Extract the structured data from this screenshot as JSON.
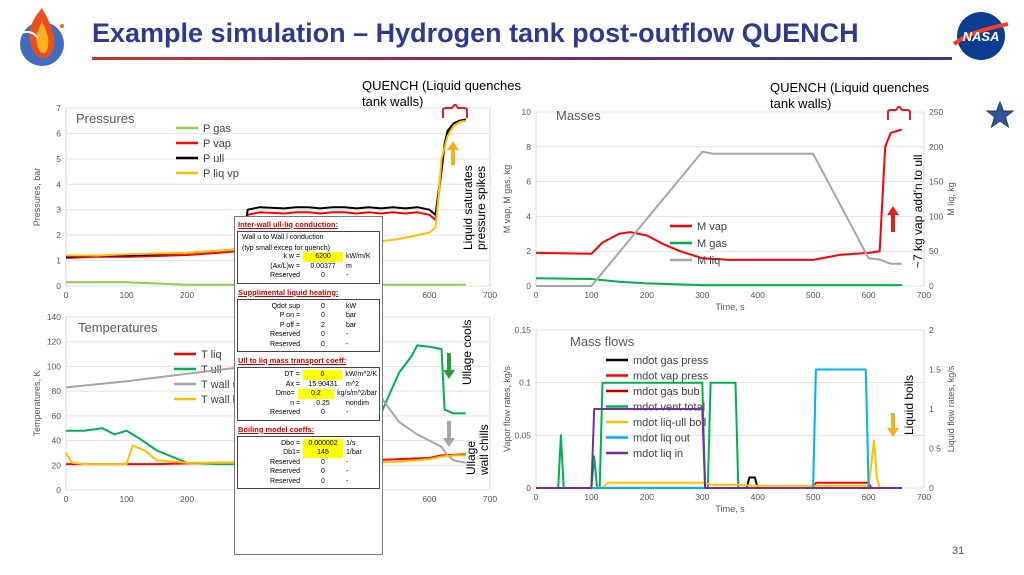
{
  "slide": {
    "title": "Example simulation – Hydrogen tank post-outflow QUENCH",
    "page_number": "31",
    "nasa_logo_text": "NASA"
  },
  "annotations": {
    "quench_left": [
      "QUENCH (Liquid quenches",
      "tank walls)"
    ],
    "quench_right": [
      "QUENCH (Liquid quenches",
      "tank walls)"
    ],
    "liquid_saturates": [
      "Liquid saturates",
      "pressure spikes"
    ],
    "vap_add": "~7 kg vap add'n to ull",
    "ullage_cools": "Ullage cools",
    "ullage_chills": [
      "Ullage",
      "wall chills"
    ],
    "liquid_boils": "Liquid boils"
  },
  "colors": {
    "gas": "#8fd14f",
    "vap": "#ff0000",
    "ull": "#000000",
    "liqvp": "#ffc000",
    "green": "#00b050",
    "gray": "#a6a6a6",
    "blue": "#00b0f0",
    "purple": "#7030a0",
    "darkred": "#c00000",
    "arrow_gold": "#f0b020",
    "arrow_red": "#e02020",
    "arrow_green": "#2a9d3a"
  },
  "chart_data": [
    {
      "id": "pressures",
      "type": "line",
      "title": "Pressures",
      "ylabel": "Pressures, bar",
      "xlim": [
        0,
        700
      ],
      "ylim": [
        0,
        7
      ],
      "xticks": [
        0,
        100,
        200,
        300,
        400,
        500,
        600,
        700
      ],
      "yticks": [
        0,
        1,
        2,
        3,
        4,
        5,
        6,
        7
      ],
      "series": [
        {
          "name": "P gas",
          "color": "#8fd14f",
          "x": [
            0,
            100,
            150,
            200,
            300,
            400,
            500,
            600,
            610,
            660
          ],
          "y": [
            0.15,
            0.15,
            0.1,
            0.05,
            0.05,
            0.05,
            0.05,
            0.05,
            0.05,
            0.05
          ]
        },
        {
          "name": "P vap",
          "color": "#ff0000",
          "x": [
            0,
            50,
            100,
            150,
            200,
            250,
            290,
            300,
            320,
            360,
            380,
            400,
            420,
            440,
            460,
            480,
            500,
            520,
            540,
            560,
            580,
            600,
            610,
            620,
            625,
            630,
            640,
            650,
            660
          ],
          "y": [
            1.1,
            1.15,
            1.15,
            1.18,
            1.22,
            1.3,
            1.38,
            2.8,
            2.9,
            2.85,
            2.9,
            2.9,
            2.85,
            2.9,
            2.9,
            2.85,
            2.9,
            2.85,
            2.9,
            2.85,
            2.9,
            2.8,
            2.6,
            4.5,
            5.5,
            6.0,
            6.3,
            6.45,
            6.5
          ]
        },
        {
          "name": "P ull",
          "color": "#000000",
          "x": [
            0,
            50,
            100,
            150,
            200,
            250,
            290,
            300,
            320,
            360,
            380,
            400,
            420,
            440,
            460,
            480,
            500,
            520,
            540,
            560,
            580,
            600,
            610,
            620,
            625,
            630,
            640,
            650,
            660
          ],
          "y": [
            1.15,
            1.2,
            1.2,
            1.25,
            1.3,
            1.38,
            1.45,
            3.0,
            3.1,
            3.05,
            3.1,
            3.1,
            3.05,
            3.1,
            3.1,
            3.05,
            3.1,
            3.05,
            3.1,
            3.05,
            3.1,
            3.0,
            2.8,
            4.6,
            5.6,
            6.1,
            6.4,
            6.5,
            6.55
          ]
        },
        {
          "name": "P liq vp",
          "color": "#ffc000",
          "x": [
            0,
            50,
            100,
            150,
            200,
            250,
            290,
            300,
            350,
            400,
            450,
            500,
            550,
            600,
            610,
            615,
            620,
            630,
            640,
            650,
            660
          ],
          "y": [
            1.2,
            1.2,
            1.25,
            1.28,
            1.3,
            1.38,
            1.45,
            1.5,
            1.5,
            1.5,
            1.6,
            1.7,
            1.85,
            2.1,
            2.3,
            3.5,
            5.0,
            5.9,
            6.3,
            6.45,
            6.5
          ]
        }
      ]
    },
    {
      "id": "masses",
      "type": "line",
      "title": "Masses",
      "xlabel": "Time, s",
      "ylabel": "M vap, M gas, kg",
      "y2label": "M liq, kg",
      "xlim": [
        0,
        700
      ],
      "ylim": [
        0,
        10
      ],
      "y2lim": [
        0,
        250
      ],
      "xticks": [
        0,
        100,
        200,
        300,
        400,
        500,
        600,
        700
      ],
      "yticks": [
        0,
        2,
        4,
        6,
        8,
        10
      ],
      "y2ticks": [
        0,
        50,
        100,
        150,
        200,
        250
      ],
      "series": [
        {
          "name": "M vap",
          "color": "#ff0000",
          "axis": "left",
          "x": [
            0,
            100,
            120,
            150,
            170,
            200,
            230,
            260,
            300,
            350,
            400,
            500,
            550,
            600,
            620,
            625,
            630,
            640,
            660
          ],
          "y": [
            1.9,
            1.85,
            2.5,
            3.0,
            3.1,
            2.9,
            2.4,
            2.0,
            1.6,
            1.5,
            1.5,
            1.5,
            1.8,
            1.9,
            2.0,
            5.0,
            8.0,
            8.8,
            9.0
          ]
        },
        {
          "name": "M gas",
          "color": "#00b050",
          "axis": "left",
          "x": [
            0,
            100,
            150,
            200,
            250,
            300,
            400,
            500,
            600,
            660
          ],
          "y": [
            0.45,
            0.4,
            0.25,
            0.15,
            0.1,
            0.05,
            0.05,
            0.05,
            0.05,
            0.05
          ]
        },
        {
          "name": "M liq",
          "color": "#a6a6a6",
          "axis": "right",
          "x": [
            0,
            100,
            300,
            320,
            500,
            520,
            600,
            620,
            640,
            660
          ],
          "y": [
            0,
            0,
            193,
            190,
            190,
            160,
            40,
            38,
            32,
            32
          ]
        }
      ]
    },
    {
      "id": "temperatures",
      "type": "line",
      "title": "Temperatures",
      "ylabel": "Temperatures, K",
      "xlim": [
        0,
        700
      ],
      "ylim": [
        0,
        140
      ],
      "xticks": [
        0,
        100,
        200,
        300,
        400,
        500,
        600,
        700
      ],
      "yticks": [
        0,
        20,
        40,
        60,
        80,
        100,
        120,
        140
      ],
      "series": [
        {
          "name": "T liq",
          "color": "#ff0000",
          "x": [
            0,
            100,
            150,
            200,
            250,
            300,
            350,
            400,
            450,
            500,
            550,
            600,
            620,
            660
          ],
          "y": [
            21,
            21,
            21,
            21.5,
            22,
            22,
            22.5,
            23,
            23.5,
            24,
            25,
            26,
            28,
            29
          ]
        },
        {
          "name": "T ull",
          "color": "#00b050",
          "x": [
            0,
            30,
            60,
            80,
            100,
            120,
            150,
            200,
            250,
            300,
            350,
            400,
            450,
            500,
            550,
            570,
            580,
            600,
            620,
            625,
            640,
            660
          ],
          "y": [
            48,
            48,
            50,
            45,
            48,
            42,
            32,
            22,
            21,
            21,
            22,
            23,
            25,
            40,
            95,
            108,
            117,
            116,
            114,
            65,
            62,
            62
          ]
        },
        {
          "name": "T wall u",
          "color": "#a6a6a6",
          "x": [
            0,
            100,
            200,
            300,
            400,
            500,
            520,
            550,
            580,
            600,
            620,
            630,
            640,
            660
          ],
          "y": [
            83,
            88,
            94,
            100,
            106,
            112,
            75,
            55,
            45,
            40,
            35,
            28,
            24,
            22
          ]
        },
        {
          "name": "T wall l",
          "color": "#ffc000",
          "x": [
            0,
            10,
            30,
            60,
            100,
            110,
            130,
            150,
            200,
            250,
            300,
            350,
            400,
            450,
            500,
            550,
            600,
            620,
            640,
            660
          ],
          "y": [
            30,
            22,
            21,
            21,
            21,
            36,
            32,
            24,
            22,
            22,
            22,
            22,
            22,
            22,
            22,
            23,
            25,
            27,
            28,
            28
          ]
        }
      ]
    },
    {
      "id": "mass_flows",
      "type": "line",
      "title": "Mass flows",
      "xlabel": "Time, s",
      "ylabel": "Vapor flow rates, kg/s",
      "y2label": "Liquid flow rates, kg/s",
      "xlim": [
        0,
        700
      ],
      "ylim": [
        0,
        0.15
      ],
      "y2lim": [
        0,
        2
      ],
      "xticks": [
        0,
        100,
        200,
        300,
        400,
        500,
        600,
        700
      ],
      "yticks": [
        0,
        0.05,
        0.1,
        0.15
      ],
      "y2ticks": [
        0,
        0.5,
        1,
        1.5,
        2
      ],
      "series": [
        {
          "name": "mdot gas press",
          "color": "#000000",
          "axis": "left",
          "x": [
            0,
            380,
            385,
            395,
            400,
            660
          ],
          "y": [
            0,
            0,
            0.01,
            0.01,
            0,
            0
          ]
        },
        {
          "name": "mdot vap press",
          "color": "#ff0000",
          "axis": "left",
          "x": [
            0,
            500,
            505,
            600,
            605,
            660
          ],
          "y": [
            0,
            0,
            0.005,
            0.005,
            0,
            0
          ]
        },
        {
          "name": "mdot gas bub",
          "color": "#c00000",
          "axis": "left",
          "x": [
            0,
            660
          ],
          "y": [
            0,
            0
          ]
        },
        {
          "name": "mdot vent total",
          "color": "#00b050",
          "axis": "left",
          "x": [
            0,
            40,
            45,
            50,
            100,
            105,
            110,
            115,
            120,
            300,
            305,
            310,
            315,
            320,
            360,
            365,
            370,
            660
          ],
          "y": [
            0,
            0,
            0.05,
            0,
            0,
            0.03,
            0,
            0,
            0.1,
            0.1,
            0,
            0,
            0.1,
            0.1,
            0.1,
            0,
            0,
            0
          ]
        },
        {
          "name": "mdot liq-ull boil",
          "color": "#ffc000",
          "axis": "left",
          "x": [
            0,
            120,
            130,
            300,
            320,
            360,
            400,
            500,
            600,
            610,
            615,
            620,
            660
          ],
          "y": [
            0,
            0,
            0.005,
            0.005,
            0.003,
            0.003,
            0.002,
            0.002,
            0.002,
            0.045,
            0.01,
            0,
            0
          ]
        },
        {
          "name": "mdot liq out",
          "color": "#00b0f0",
          "axis": "right",
          "x": [
            0,
            500,
            505,
            595,
            600,
            660
          ],
          "y": [
            0,
            0,
            1.5,
            1.5,
            0,
            0
          ]
        },
        {
          "name": "mdot liq in",
          "color": "#7030a0",
          "axis": "right",
          "x": [
            0,
            100,
            105,
            300,
            305,
            660
          ],
          "y": [
            0,
            0,
            1.0,
            1.0,
            0,
            0
          ]
        }
      ]
    }
  ],
  "coef_table": {
    "inter_wall": {
      "header": "Inter-wall ull-liq conduction:",
      "line1": "Wall u to Wall l conduction",
      "line2": "(typ small excep for quench)",
      "rows": [
        {
          "label": "k w =",
          "value": "6200",
          "unit": "kW/m/K",
          "hl": true
        },
        {
          "label": "(Ax/L)w =",
          "value": "0.00377",
          "unit": "m",
          "hl": false
        },
        {
          "label": "Reserved",
          "value": "0",
          "unit": "-",
          "hl": false
        }
      ]
    },
    "supplemental": {
      "header": "Supplimental liquid heating:",
      "rows": [
        {
          "label": "Qdot sup",
          "value": "0",
          "unit": "kW",
          "hl": false
        },
        {
          "label": "P on =",
          "value": "0",
          "unit": "bar",
          "hl": false
        },
        {
          "label": "P off =",
          "value": "2",
          "unit": "bar",
          "hl": false
        },
        {
          "label": "Reserved",
          "value": "0",
          "unit": "-",
          "hl": false
        },
        {
          "label": "Reserved",
          "value": "0",
          "unit": "-",
          "hl": false
        }
      ]
    },
    "ull_to_liq": {
      "header": "Ull to liq mass transport coeff:",
      "rows": [
        {
          "label": "DT =",
          "value": "0",
          "unit": "kW/m^2/K",
          "hl": true
        },
        {
          "label": "Ax =",
          "value": "15.90431",
          "unit": "m^2",
          "hl": false
        },
        {
          "label": "Dmo=",
          "value": "0.2",
          "unit": "kg/s/m^2/bar",
          "hl": true
        },
        {
          "label": "n =",
          "value": "0.25",
          "unit": "nondim",
          "hl": false
        },
        {
          "label": "Reserved",
          "value": "0",
          "unit": "-",
          "hl": false
        }
      ]
    },
    "boiling": {
      "header": "Boiling model coeffs:",
      "rows": [
        {
          "label": "Dbo =",
          "value": "0.000002",
          "unit": "1/s",
          "hl": true
        },
        {
          "label": "Db1=",
          "value": "145",
          "unit": "1/bar",
          "hl": true
        },
        {
          "label": "Reserved",
          "value": "0",
          "unit": "-",
          "hl": false
        },
        {
          "label": "Reserved",
          "value": "0",
          "unit": "-",
          "hl": false
        },
        {
          "label": "Reserved",
          "value": "0",
          "unit": "-",
          "hl": false
        }
      ]
    }
  }
}
